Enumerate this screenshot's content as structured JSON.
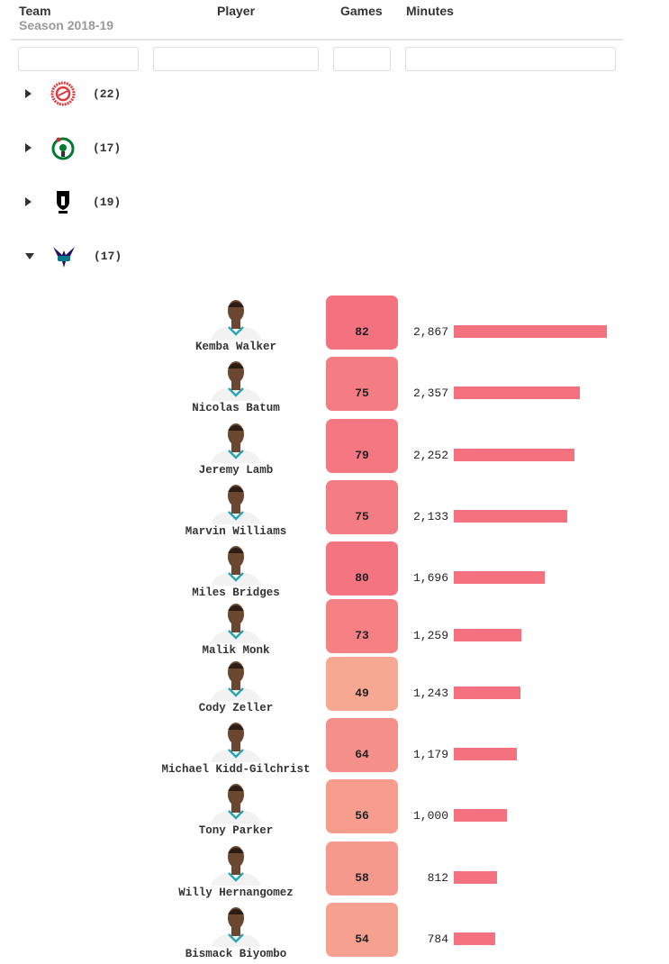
{
  "header": {
    "team": "Team",
    "season": "Season 2018-19",
    "player": "Player",
    "games": "Games",
    "minutes": "Minutes"
  },
  "teams": [
    {
      "logo": "atlanta-hawks-logo",
      "count": "(22)",
      "expanded": false
    },
    {
      "logo": "boston-celtics-logo",
      "count": "(17)",
      "expanded": false
    },
    {
      "logo": "brooklyn-nets-logo",
      "count": "(19)",
      "expanded": false
    },
    {
      "logo": "charlotte-hornets-logo",
      "count": "(17)",
      "expanded": true
    }
  ],
  "colors": {
    "bar": "#f47280",
    "games_high": "#f47280",
    "games_low": "#f6a892"
  },
  "max_minutes": 2867,
  "players": [
    {
      "name": "Kemba Walker",
      "games": 82,
      "minutes": 2867,
      "minutes_label": "2,867"
    },
    {
      "name": "Nicolas Batum",
      "games": 75,
      "minutes": 2357,
      "minutes_label": "2,357"
    },
    {
      "name": "Jeremy Lamb",
      "games": 79,
      "minutes": 2252,
      "minutes_label": "2,252"
    },
    {
      "name": "Marvin Williams",
      "games": 75,
      "minutes": 2133,
      "minutes_label": "2,133"
    },
    {
      "name": "Miles Bridges",
      "games": 80,
      "minutes": 1696,
      "minutes_label": "1,696"
    },
    {
      "name": "Malik Monk",
      "games": 73,
      "minutes": 1259,
      "minutes_label": "1,259"
    },
    {
      "name": "Cody Zeller",
      "games": 49,
      "minutes": 1243,
      "minutes_label": "1,243"
    },
    {
      "name": "Michael Kidd-Gilchrist",
      "games": 64,
      "minutes": 1179,
      "minutes_label": "1,179"
    },
    {
      "name": "Tony Parker",
      "games": 56,
      "minutes": 1000,
      "minutes_label": "1,000"
    },
    {
      "name": "Willy Hernangomez",
      "games": 58,
      "minutes": 812,
      "minutes_label": "812"
    },
    {
      "name": "Bismack Biyombo",
      "games": 54,
      "minutes": 784,
      "minutes_label": "784"
    }
  ]
}
